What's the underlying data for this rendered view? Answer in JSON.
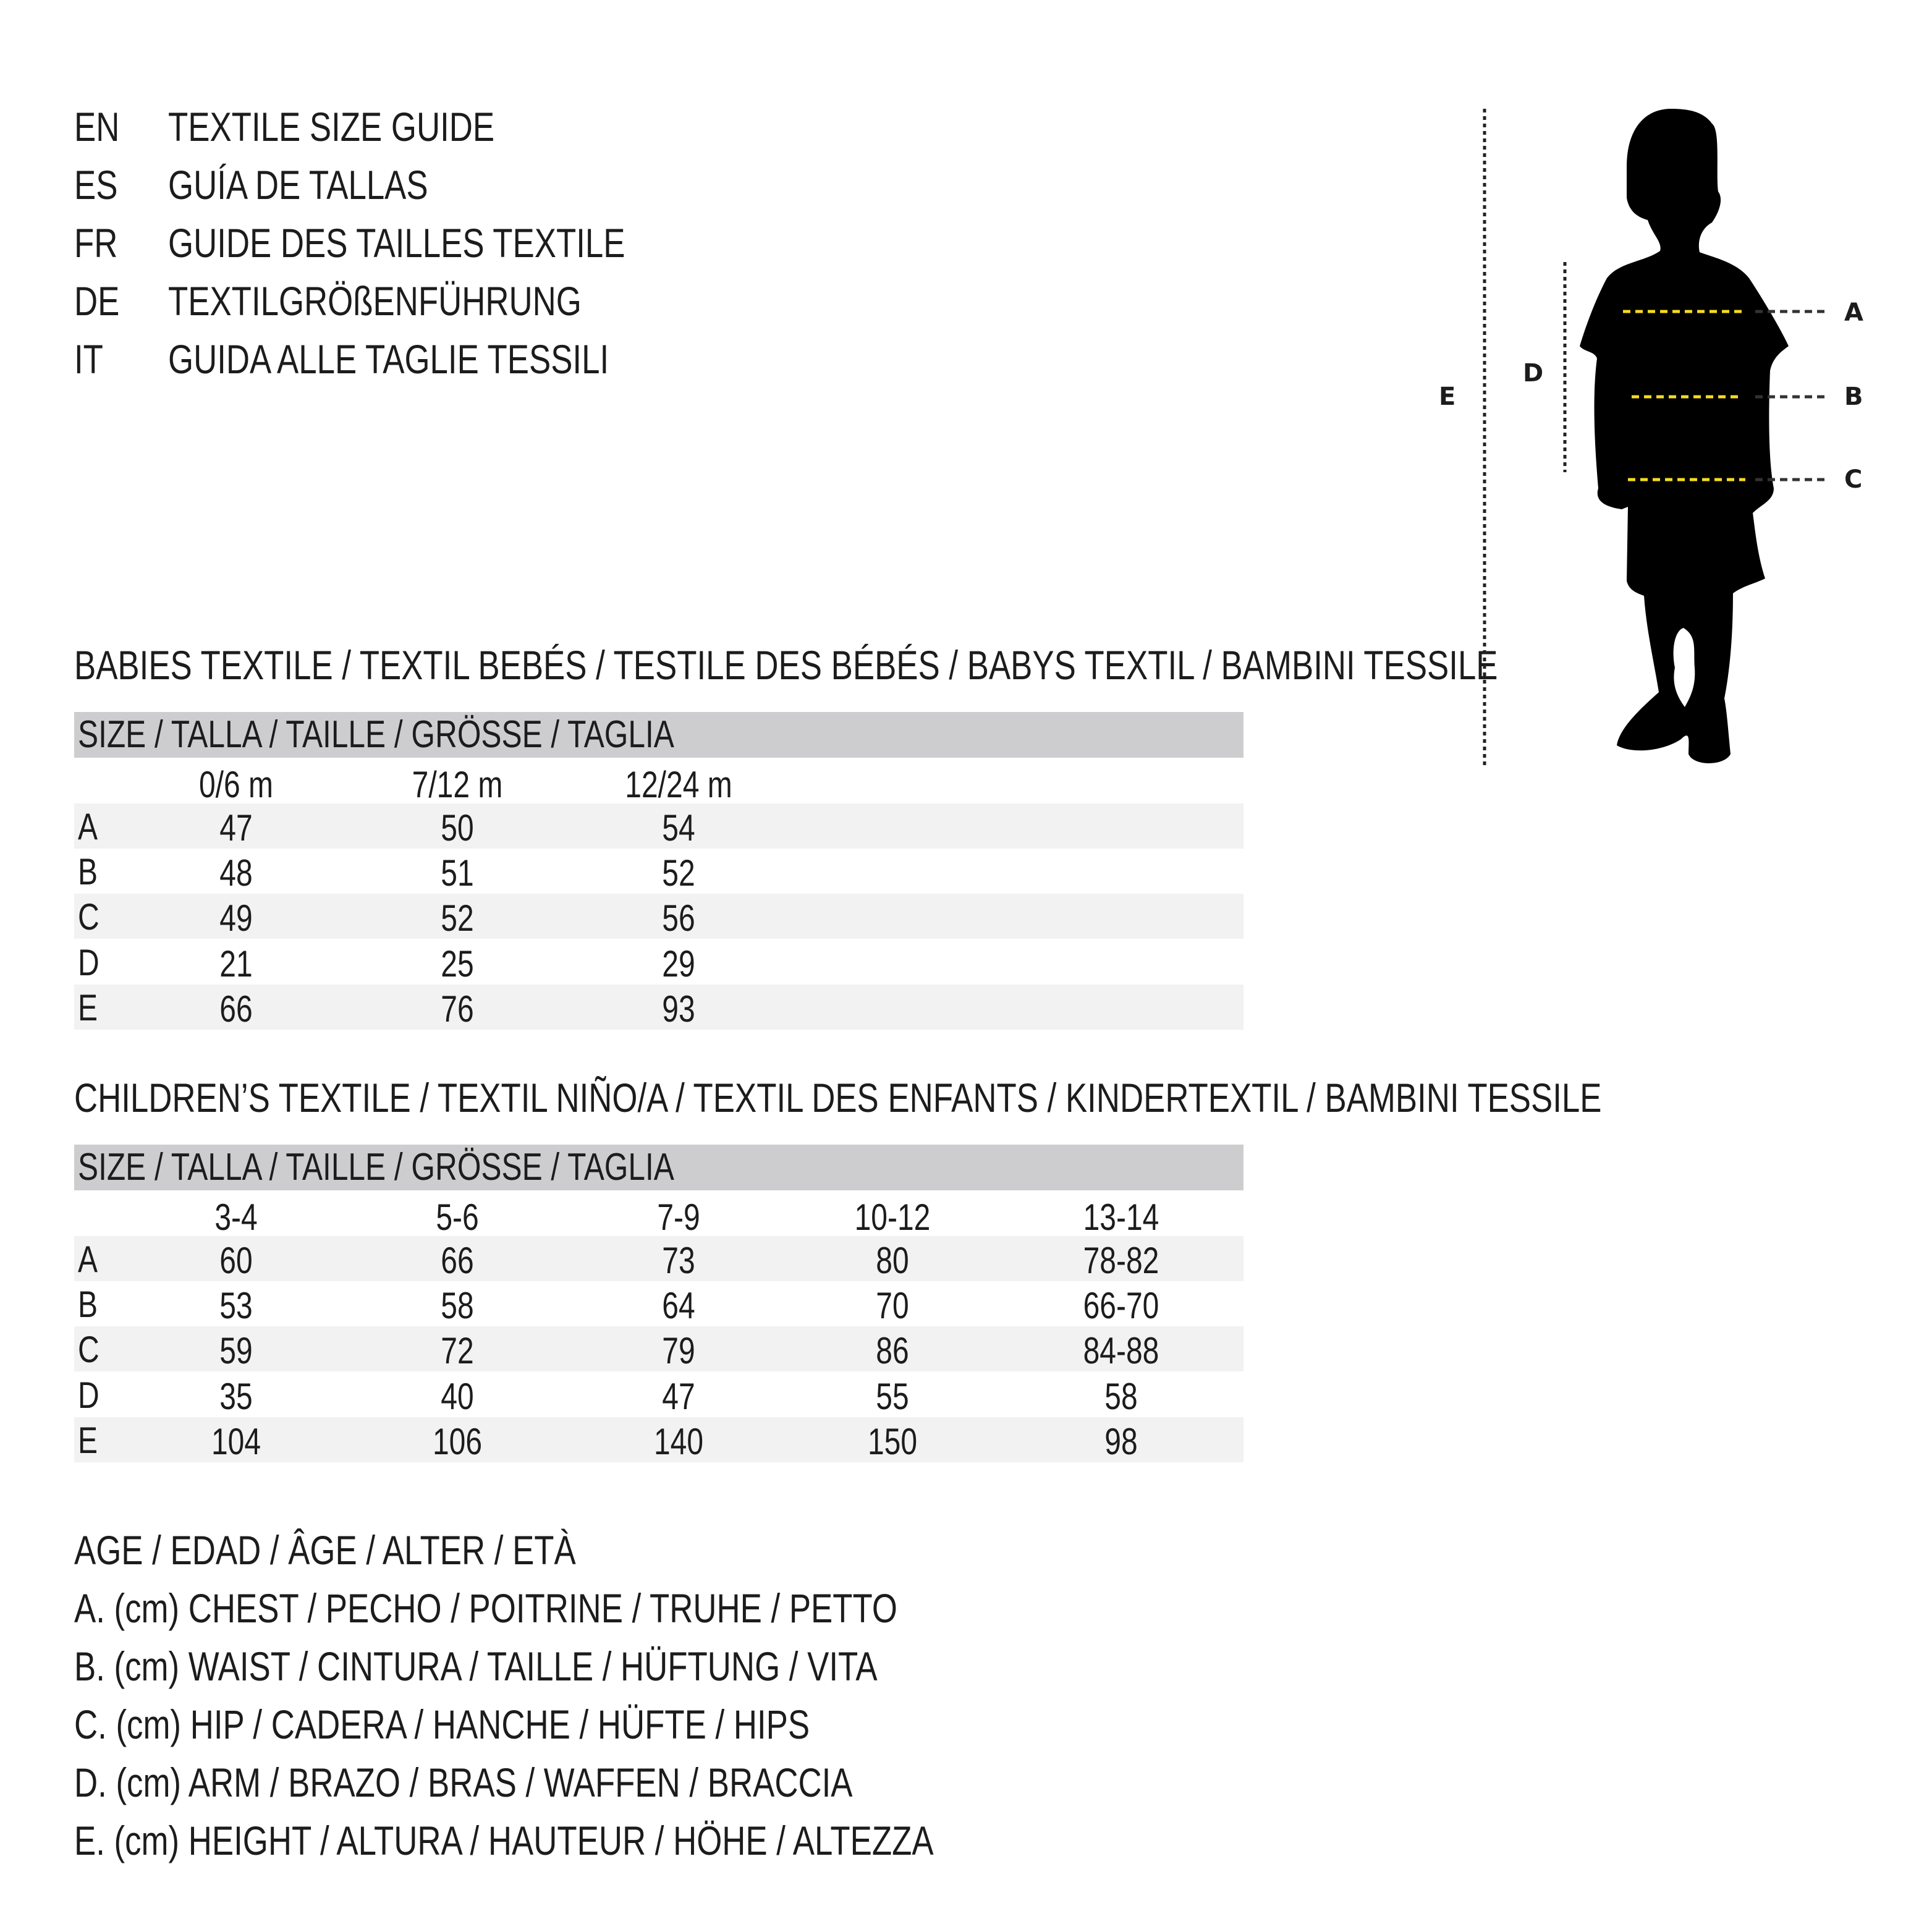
{
  "titles": [
    {
      "code": "EN",
      "text": "TEXTILE SIZE GUIDE"
    },
    {
      "code": "ES",
      "text": "GUÍA DE TALLAS"
    },
    {
      "code": "FR",
      "text": "GUIDE DES TAILLES TEXTILE"
    },
    {
      "code": "DE",
      "text": "TEXTILGRÖßENFÜHRUNG"
    },
    {
      "code": "IT",
      "text": "GUIDA ALLE TAGLIE TESSILI"
    }
  ],
  "figure": {
    "labels": {
      "A": "A",
      "B": "B",
      "C": "C",
      "D": "D",
      "E": "E"
    },
    "accent": "#f5dc1e"
  },
  "babies": {
    "heading": "BABIES TEXTILE / TEXTIL BEBÉS / TESTILE DES BÉBÉS / BABYS TEXTIL / BAMBINI TESSILE",
    "size_header": "SIZE / TALLA / TAILLE / GRÖSSE / TAGLIA",
    "columns": [
      "0/6 m",
      "7/12 m",
      "12/24 m"
    ],
    "rows": [
      {
        "label": "A",
        "values": [
          "47",
          "50",
          "54"
        ]
      },
      {
        "label": "B",
        "values": [
          "48",
          "51",
          "52"
        ]
      },
      {
        "label": "C",
        "values": [
          "49",
          "52",
          "56"
        ]
      },
      {
        "label": "D",
        "values": [
          "21",
          "25",
          "29"
        ]
      },
      {
        "label": "E",
        "values": [
          "66",
          "76",
          "93"
        ]
      }
    ]
  },
  "children": {
    "heading": "CHILDREN’S TEXTILE / TEXTIL NIÑO/A / TEXTIL DES ENFANTS / KINDERTEXTIL / BAMBINI TESSILE",
    "size_header": "SIZE / TALLA / TAILLE / GRÖSSE / TAGLIA",
    "columns": [
      "3-4",
      "5-6",
      "7-9",
      "10-12",
      "13-14"
    ],
    "rows": [
      {
        "label": "A",
        "values": [
          "60",
          "66",
          "73",
          "80",
          "78-82"
        ]
      },
      {
        "label": "B",
        "values": [
          "53",
          "58",
          "64",
          "70",
          "66-70"
        ]
      },
      {
        "label": "C",
        "values": [
          "59",
          "72",
          "79",
          "86",
          "84-88"
        ]
      },
      {
        "label": "D",
        "values": [
          "35",
          "40",
          "47",
          "55",
          "58"
        ]
      },
      {
        "label": "E",
        "values": [
          "104",
          "106",
          "140",
          "150",
          "98"
        ]
      }
    ]
  },
  "legend": [
    "AGE / EDAD / ÂGE / ALTER / ETÀ",
    "A. (cm) CHEST / PECHO / POITRINE / TRUHE / PETTO",
    "B. (cm) WAIST / CINTURA / TAILLE / HÜFTUNG / VITA",
    "C. (cm) HIP / CADERA / HANCHE / HÜFTE / HIPS",
    "D. (cm) ARM / BRAZO / BRAS / WAFFEN / BRACCIA",
    "E. (cm) HEIGHT / ALTURA / HAUTEUR / HÖHE / ALTEZZA"
  ]
}
